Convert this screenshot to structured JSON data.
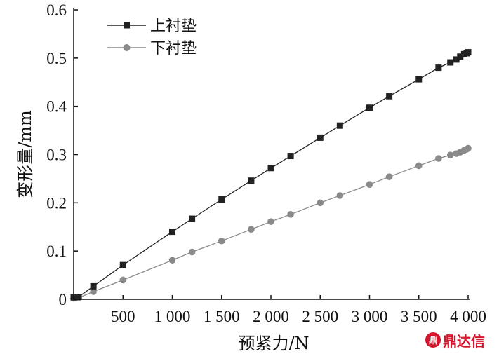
{
  "chart_data": {
    "type": "line",
    "title": "",
    "xlabel": "预紧力/N",
    "ylabel": "变形量/mm",
    "xlim": [
      0,
      4000
    ],
    "ylim": [
      0,
      0.6
    ],
    "grid": false,
    "legend_position": "top-left",
    "x_ticks": [
      {
        "value": 500,
        "label": "500"
      },
      {
        "value": 1000,
        "label": "1 000"
      },
      {
        "value": 1500,
        "label": "1 500"
      },
      {
        "value": 2000,
        "label": "2 000"
      },
      {
        "value": 2500,
        "label": "2 500"
      },
      {
        "value": 3000,
        "label": "3 000"
      },
      {
        "value": 3500,
        "label": "3 500"
      },
      {
        "value": 4000,
        "label": "4 000"
      }
    ],
    "y_ticks": [
      {
        "value": 0,
        "label": "0"
      },
      {
        "value": 0.1,
        "label": "0.1"
      },
      {
        "value": 0.2,
        "label": "0.2"
      },
      {
        "value": 0.3,
        "label": "0.3"
      },
      {
        "value": 0.4,
        "label": "0.4"
      },
      {
        "value": 0.5,
        "label": "0.5"
      },
      {
        "value": 0.6,
        "label": "0.6"
      }
    ],
    "series": [
      {
        "name": "上衬垫",
        "color": "#222222",
        "marker": "square",
        "points": [
          [
            0,
            0.004
          ],
          [
            50,
            0.005
          ],
          [
            200,
            0.027
          ],
          [
            500,
            0.071
          ],
          [
            1000,
            0.14
          ],
          [
            1200,
            0.167
          ],
          [
            1500,
            0.207
          ],
          [
            1800,
            0.246
          ],
          [
            2000,
            0.272
          ],
          [
            2200,
            0.297
          ],
          [
            2500,
            0.335
          ],
          [
            2700,
            0.36
          ],
          [
            3000,
            0.397
          ],
          [
            3200,
            0.421
          ],
          [
            3500,
            0.456
          ],
          [
            3700,
            0.48
          ],
          [
            3820,
            0.491
          ],
          [
            3880,
            0.497
          ],
          [
            3920,
            0.503
          ],
          [
            3960,
            0.508
          ],
          [
            3985,
            0.51
          ],
          [
            4000,
            0.512
          ]
        ]
      },
      {
        "name": "下衬垫",
        "color": "#8a8a8a",
        "marker": "circle",
        "points": [
          [
            0,
            0.002
          ],
          [
            50,
            0.003
          ],
          [
            200,
            0.016
          ],
          [
            500,
            0.04
          ],
          [
            1000,
            0.081
          ],
          [
            1200,
            0.098
          ],
          [
            1500,
            0.121
          ],
          [
            1800,
            0.145
          ],
          [
            2000,
            0.161
          ],
          [
            2200,
            0.176
          ],
          [
            2500,
            0.2
          ],
          [
            2700,
            0.215
          ],
          [
            3000,
            0.238
          ],
          [
            3200,
            0.254
          ],
          [
            3500,
            0.277
          ],
          [
            3700,
            0.292
          ],
          [
            3820,
            0.299
          ],
          [
            3880,
            0.302
          ],
          [
            3920,
            0.305
          ],
          [
            3960,
            0.309
          ],
          [
            3985,
            0.311
          ],
          [
            4000,
            0.313
          ]
        ]
      }
    ]
  },
  "watermark": {
    "badge": "鼎",
    "text": "鼎达信"
  }
}
